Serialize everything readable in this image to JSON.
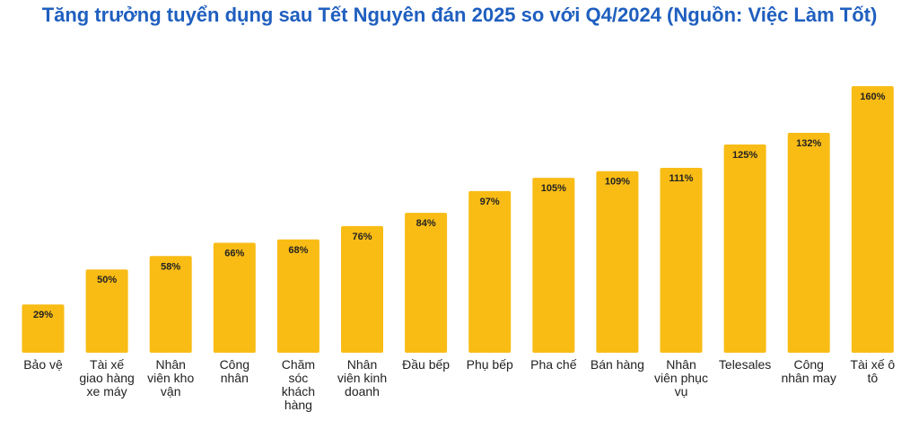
{
  "title": "Tăng trưởng tuyển dụng sau Tết Nguyên đán 2025 so với Q4/2024 (Nguồn: Việc Làm Tốt)",
  "colors": {
    "bar": "#f9bc15",
    "title": "#1f5fbf",
    "text": "#222222"
  },
  "chart_data": {
    "type": "bar",
    "title": "Tăng trưởng tuyển dụng sau Tết Nguyên đán 2025 so với Q4/2024 (Nguồn: Việc Làm Tốt)",
    "xlabel": "",
    "ylabel": "",
    "ylim": [
      0,
      160
    ],
    "grid": false,
    "categories": [
      "Bảo vệ",
      "Tài xế giao hàng xe máy",
      "Nhân viên kho vận",
      "Công nhân",
      "Chăm sóc khách hàng",
      "Nhân viên kinh doanh",
      "Đầu bếp",
      "Phụ bếp",
      "Pha chế",
      "Bán hàng",
      "Nhân viên phục vụ",
      "Telesales",
      "Công nhân may",
      "Tài xế ô tô"
    ],
    "category_lines": [
      [
        "Bảo vệ"
      ],
      [
        "Tài xế",
        "giao hàng",
        "xe máy"
      ],
      [
        "Nhân",
        "viên kho",
        "vận"
      ],
      [
        "Công",
        "nhân"
      ],
      [
        "Chăm",
        "sóc",
        "khách",
        "hàng"
      ],
      [
        "Nhân",
        "viên kinh",
        "doanh"
      ],
      [
        "Đầu bếp"
      ],
      [
        "Phụ bếp"
      ],
      [
        "Pha chế"
      ],
      [
        "Bán hàng"
      ],
      [
        "Nhân",
        "viên phục",
        "vụ"
      ],
      [
        "Telesales"
      ],
      [
        "Công",
        "nhân may"
      ],
      [
        "Tài xế ô",
        "tô"
      ]
    ],
    "values": [
      29,
      50,
      58,
      66,
      68,
      76,
      84,
      97,
      105,
      109,
      111,
      125,
      132,
      160
    ],
    "value_labels": [
      "29%",
      "50%",
      "58%",
      "66%",
      "68%",
      "76%",
      "84%",
      "97%",
      "105%",
      "109%",
      "111%",
      "125%",
      "132%",
      "160%"
    ]
  }
}
